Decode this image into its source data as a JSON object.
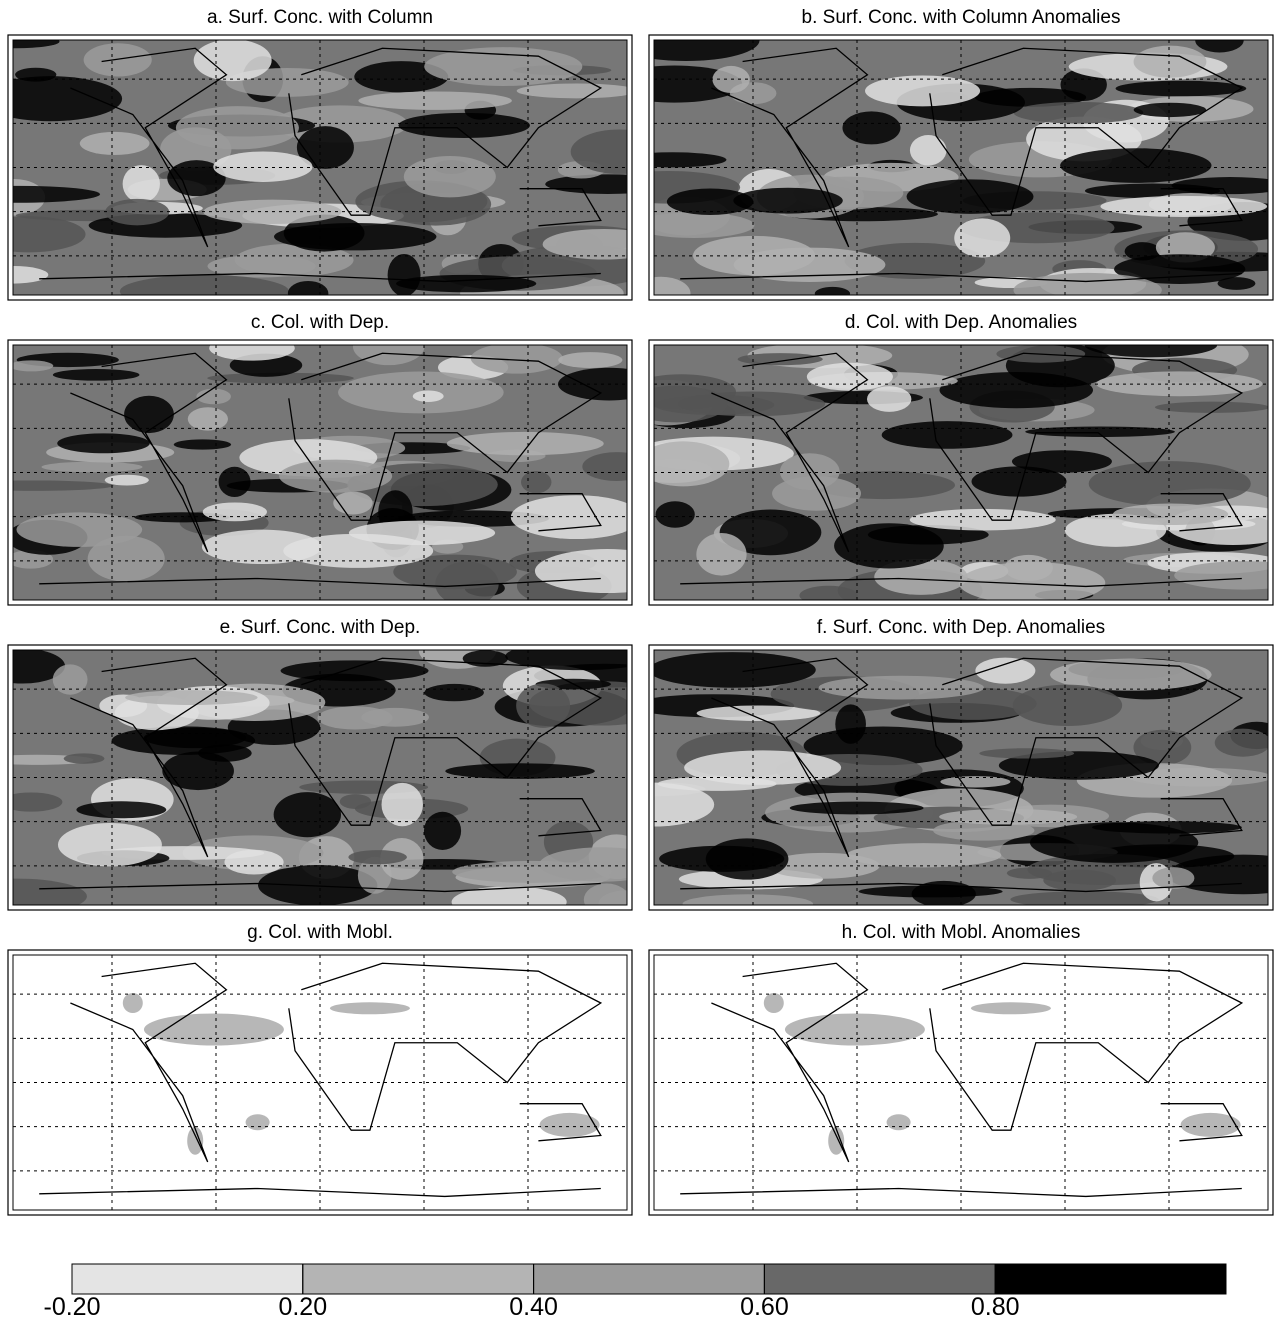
{
  "panels": [
    {
      "title": "a. Surf. Conc. with Column"
    },
    {
      "title": "b. Surf. Conc. with Column Anomalies"
    },
    {
      "title": "c. Col. with Dep."
    },
    {
      "title": "d. Col. with Dep. Anomalies"
    },
    {
      "title": "e. Surf. Conc. with Dep."
    },
    {
      "title": "f. Surf. Conc. with Dep. Anomalies"
    },
    {
      "title": "g. Col. with Mobl."
    },
    {
      "title": "h. Col. with Mobl. Anomalies"
    }
  ],
  "colorbar": {
    "ticks": [
      {
        "value": -0.2,
        "label": "-0.20"
      },
      {
        "value": 0.2,
        "label": "0.20"
      },
      {
        "value": 0.4,
        "label": "0.40"
      },
      {
        "value": 0.6,
        "label": "0.60"
      },
      {
        "value": 0.8,
        "label": "0.80"
      }
    ],
    "colors": [
      "#e4e4e4",
      "#b4b4b4",
      "#9b9b9b",
      "#686868",
      "#000000"
    ]
  }
}
